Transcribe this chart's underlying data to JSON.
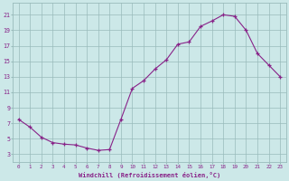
{
  "x_data": [
    0,
    1,
    2,
    3,
    4,
    5,
    6,
    7,
    8,
    9,
    10,
    11,
    12,
    13,
    14,
    15,
    16,
    17,
    18,
    19,
    20,
    21,
    22,
    23
  ],
  "y_data": [
    7.5,
    6.5,
    5.2,
    4.5,
    4.3,
    4.2,
    3.8,
    3.5,
    3.6,
    7.5,
    11.5,
    12.5,
    14.0,
    15.2,
    17.2,
    17.5,
    19.5,
    20.2,
    21.0,
    20.8,
    19.0,
    16.0,
    14.5,
    13.0
  ],
  "line_color": "#882288",
  "bg_color": "#cce8e8",
  "grid_color": "#99bbbb",
  "xlabel": "Windchill (Refroidissement éolien,°C)",
  "yticks": [
    3,
    5,
    7,
    9,
    11,
    13,
    15,
    17,
    19,
    21
  ],
  "xticks": [
    0,
    1,
    2,
    3,
    4,
    5,
    6,
    7,
    8,
    9,
    10,
    11,
    12,
    13,
    14,
    15,
    16,
    17,
    18,
    19,
    20,
    21,
    22,
    23
  ],
  "ylim": [
    2.0,
    22.5
  ],
  "xlim": [
    -0.5,
    23.5
  ]
}
